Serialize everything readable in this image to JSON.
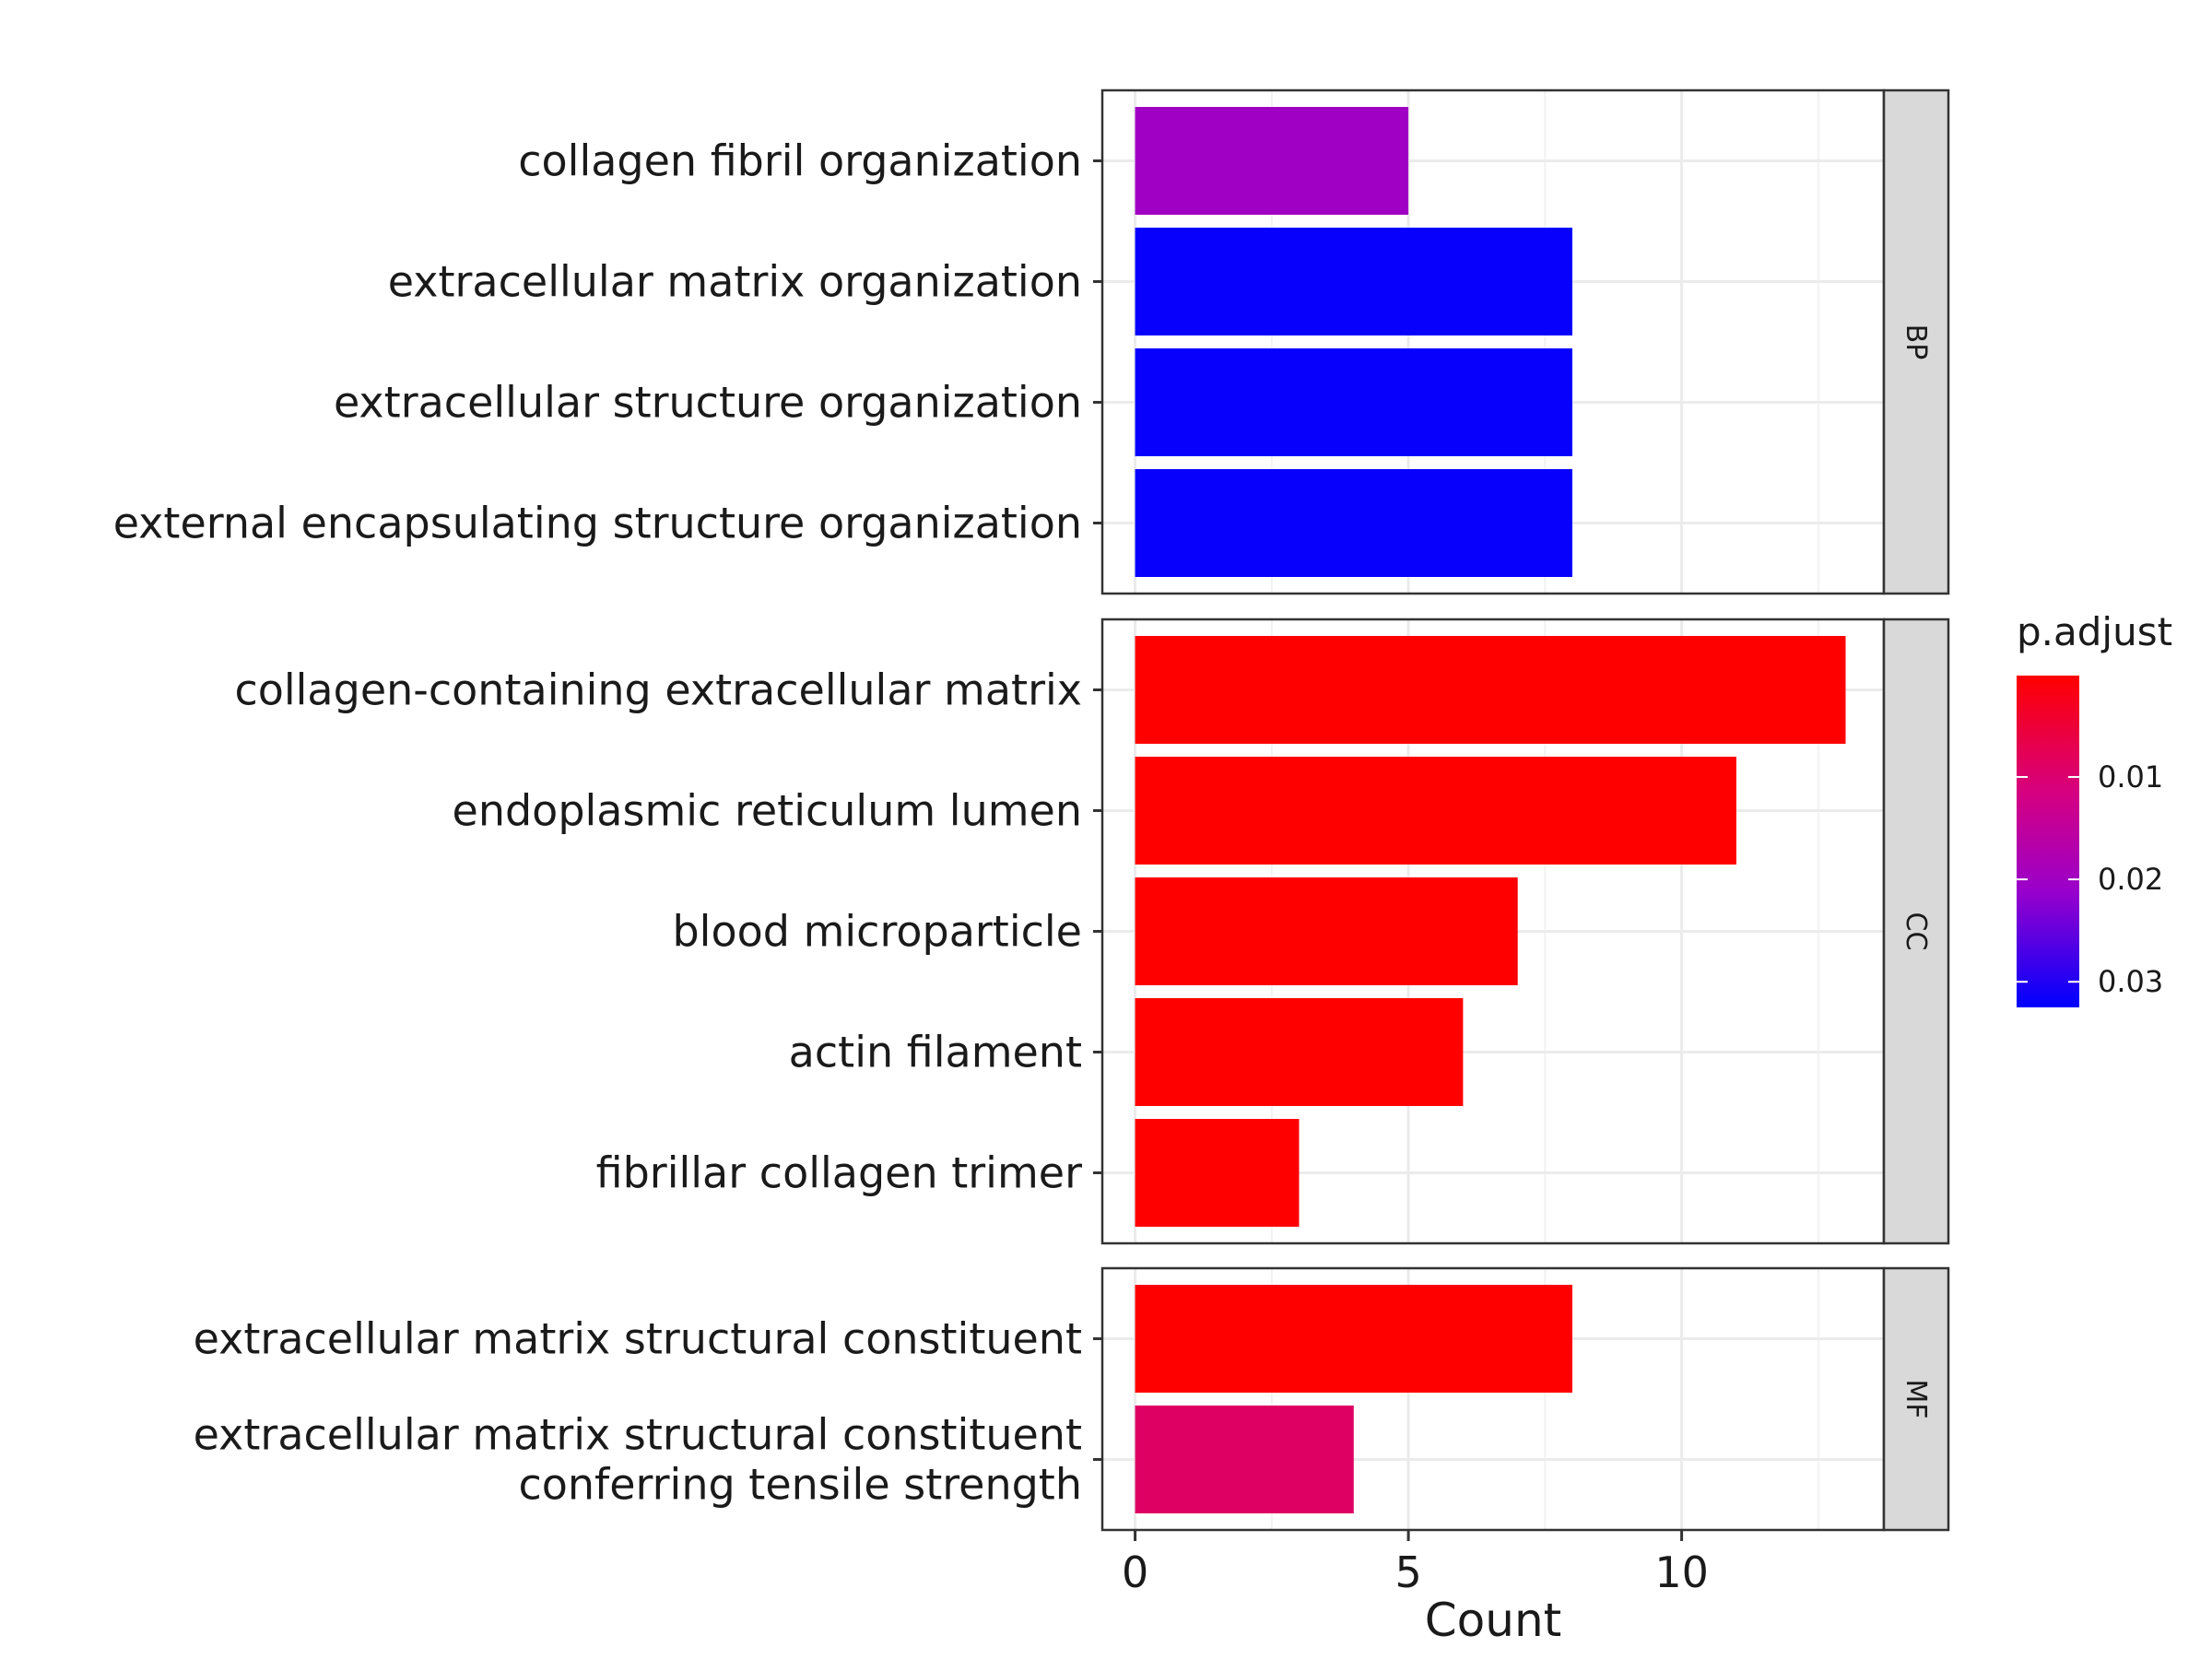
{
  "chart_data": {
    "type": "bar",
    "orientation": "horizontal",
    "xlabel": "Count",
    "xlim": [
      -0.6,
      13.7
    ],
    "xticks": [
      0,
      5,
      10
    ],
    "grid": true,
    "facets": [
      {
        "name": "BP",
        "categories": [
          "collagen fibril organization",
          "extracellular matrix organization",
          "extracellular structure organization",
          "external encapsulating structure organization"
        ],
        "values": [
          5,
          8,
          8,
          8
        ],
        "p_adjust": [
          0.02,
          0.032,
          0.032,
          0.032
        ]
      },
      {
        "name": "CC",
        "categories": [
          "collagen-containing extracellular matrix",
          "endoplasmic reticulum lumen",
          "blood microparticle",
          "actin filament",
          "fibrillar collagen trimer"
        ],
        "values": [
          13,
          11,
          7,
          6,
          3
        ],
        "p_adjust": [
          0.0001,
          0.0001,
          0.0001,
          0.0001,
          0.0001
        ]
      },
      {
        "name": "MF",
        "categories": [
          "extracellular matrix structural constituent",
          "extracellular matrix structural constituent\nconferring tensile strength"
        ],
        "values": [
          8,
          4
        ],
        "p_adjust": [
          0.0001,
          0.009
        ]
      }
    ],
    "legend": {
      "title": "p.adjust",
      "position": "right",
      "ticks": [
        0.01,
        0.02,
        0.03
      ],
      "tick_labels": [
        "0.01",
        "0.02",
        "0.03"
      ],
      "range": [
        0.0001,
        0.0325
      ],
      "color_low": "#ff0000",
      "color_high": "#0000ff"
    }
  }
}
